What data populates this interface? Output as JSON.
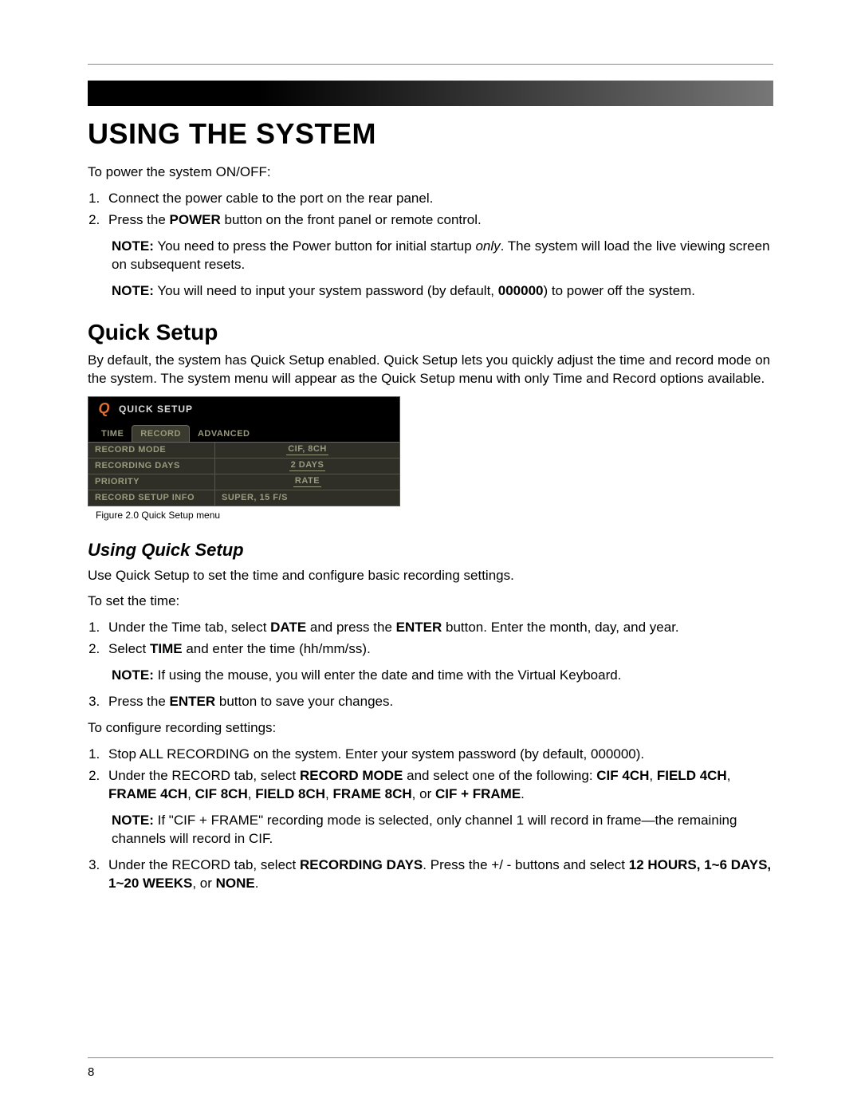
{
  "page_number": "8",
  "title": "USING THE SYSTEM",
  "intro": "To power the system ON/OFF:",
  "steps_power": [
    "Connect the power cable to the port on the rear panel.",
    "Press the <b>POWER</b> button on the front panel or remote control."
  ],
  "note1_label": "NOTE:",
  "note1": "You need to press the Power button for initial startup <i>only</i>. The system will load the live viewing screen on subsequent resets.",
  "note2_label": "NOTE:",
  "note2": "You will need to input your system password (by default, <b>000000</b>) to power off the system.",
  "quick_setup_heading": "Quick Setup",
  "quick_setup_para": "By default, the system has Quick Setup enabled. Quick Setup lets you quickly adjust the time and record mode on the system. The system menu will appear as the Quick Setup menu with only Time and Record options available.",
  "qs_menu": {
    "title": "QUICK SETUP",
    "tabs": [
      "TIME",
      "RECORD",
      "ADVANCED"
    ],
    "active_tab_index": 1,
    "rows": [
      {
        "label": "RECORD MODE",
        "value": "CIF, 8CH",
        "underline": true
      },
      {
        "label": "RECORDING DAYS",
        "value": "2 DAYS",
        "underline": true
      },
      {
        "label": "PRIORITY",
        "value": "RATE",
        "underline": true
      },
      {
        "label": "RECORD SETUP INFO",
        "value": "SUPER, 15 F/S",
        "underline": false
      }
    ],
    "caption": "Figure 2.0 Quick Setup menu",
    "colors": {
      "bg": "#2f2f27",
      "text": "#9a9a7e",
      "border": "#55554a",
      "logo": "#e07030"
    }
  },
  "using_qs_heading": "Using Quick Setup",
  "using_qs_intro": "Use Quick Setup to set the time and configure basic recording settings.",
  "to_set_time": "To set the time:",
  "time_steps": [
    "Under the Time tab, select <b>DATE</b> and press the <b>ENTER</b> button. Enter the month, day, and year.",
    "Select <b>TIME</b> and enter the time (hh/mm/ss)."
  ],
  "note3_label": "NOTE:",
  "note3": "If using the mouse, you will enter the date and time with the Virtual Keyboard.",
  "time_step3": "Press the <b>ENTER</b> button to save your changes.",
  "to_config": "To configure recording settings:",
  "config_steps": [
    "Stop ALL RECORDING on the system. Enter your system password (by default, 000000).",
    "Under the RECORD tab, select <b>RECORD MODE</b> and select one of the following: <b>CIF 4CH</b>, <b>FIELD 4CH</b>, <b>FRAME 4CH</b>, <b>CIF 8CH</b>, <b>FIELD 8CH</b>, <b>FRAME 8CH</b>, or <b>CIF + FRAME</b>."
  ],
  "note4_label": "NOTE:",
  "note4": "If \"CIF + FRAME\" recording mode is selected, only channel 1 will record in frame—the remaining channels will record in CIF.",
  "config_step3": "Under the RECORD tab, select <b>RECORDING DAYS</b>. Press the +/ - buttons and select <b>12 HOURS, 1~6 DAYS, 1~20 WEEKS</b>, or <b>NONE</b>."
}
